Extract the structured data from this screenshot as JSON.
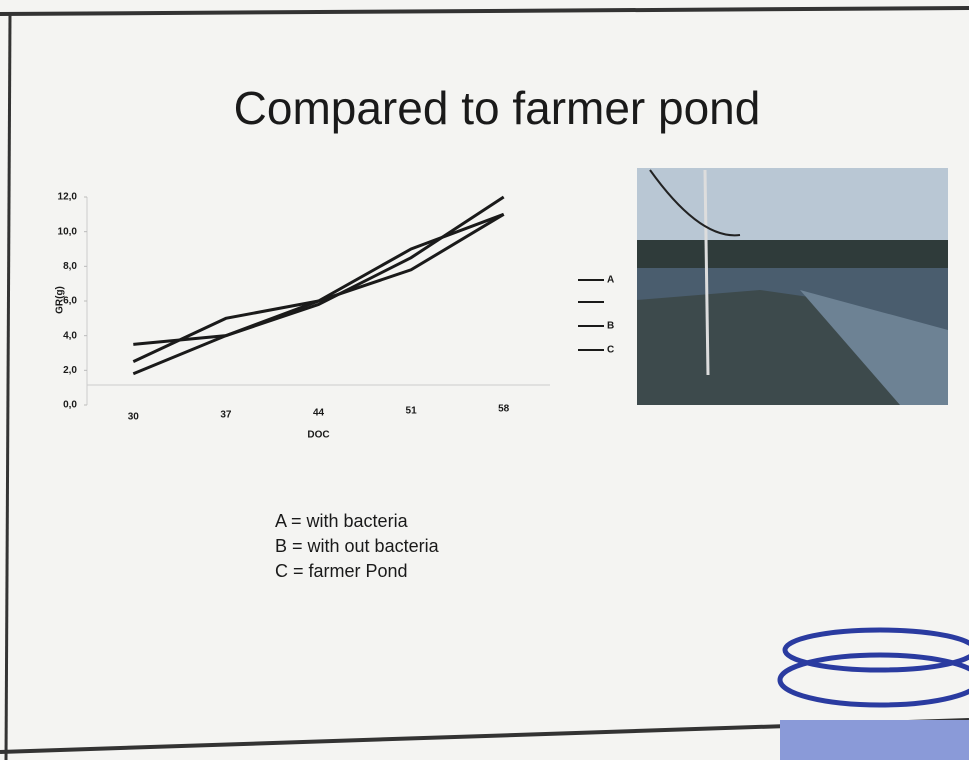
{
  "chart_data": {
    "type": "line",
    "title": "Compared to farmer pond",
    "x_label": "DOC",
    "y_label": "GR(g)",
    "categories": [
      "30",
      "37",
      "44",
      "51",
      "58"
    ],
    "series": [
      {
        "name": "A",
        "color": "#1a1a1a",
        "values": [
          3.5,
          4.0,
          6.0,
          9.0,
          11.0
        ]
      },
      {
        "name": "B",
        "color": "#1a1a1a",
        "values": [
          2.5,
          5.0,
          6.0,
          7.8,
          11.0
        ]
      },
      {
        "name": "C",
        "color": "#1a1a1a",
        "values": [
          1.8,
          4.0,
          5.8,
          8.5,
          12.0
        ]
      }
    ],
    "ylim": [
      0,
      12
    ],
    "yticks": [
      {
        "value": 0,
        "label": "0,0"
      },
      {
        "value": 2,
        "label": "2,0"
      },
      {
        "value": 4,
        "label": "4,0"
      },
      {
        "value": 6,
        "label": "6,0"
      },
      {
        "value": 8,
        "label": "8,0"
      },
      {
        "value": 10,
        "label": "10,0"
      },
      {
        "value": 12,
        "label": "12,0"
      }
    ],
    "annotations": [
      "A = with bacteria",
      "B = with out bacteria",
      "C = farmer Pond"
    ]
  }
}
